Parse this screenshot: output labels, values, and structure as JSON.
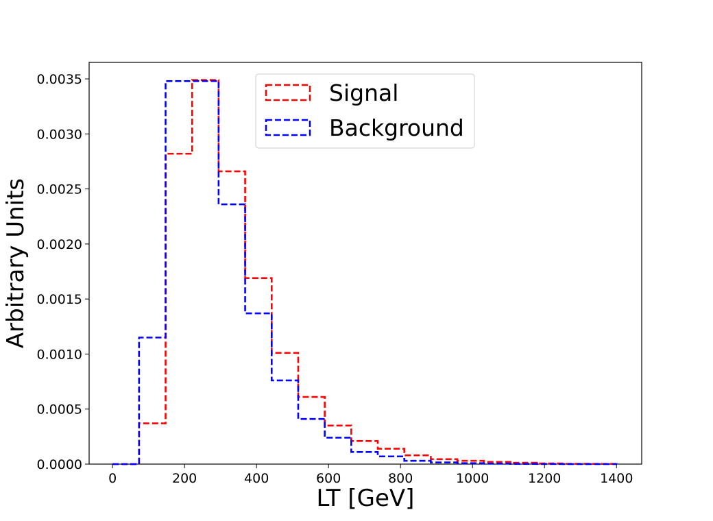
{
  "chart_data": {
    "type": "histogram",
    "title": "",
    "xlabel": "LT [GeV]",
    "ylabel": "Arbitrary Units",
    "xlim": [
      -65,
      1470
    ],
    "ylim": [
      0,
      0.00365
    ],
    "xticks": [
      0,
      200,
      400,
      600,
      800,
      1000,
      1200,
      1400
    ],
    "xtick_labels": [
      "0",
      "200",
      "400",
      "600",
      "800",
      "1000",
      "1200",
      "1400"
    ],
    "yticks": [
      0,
      0.0005,
      0.001,
      0.0015,
      0.002,
      0.0025,
      0.003,
      0.0035
    ],
    "ytick_labels": [
      "0.0000",
      "0.0005",
      "0.0010",
      "0.0015",
      "0.0020",
      "0.0025",
      "0.0030",
      "0.0035"
    ],
    "bin_edges": [
      0,
      73.7,
      147.4,
      221.1,
      294.7,
      368.4,
      442.1,
      515.8,
      589.5,
      663.2,
      736.8,
      810.5,
      884.2,
      957.9,
      1031.6,
      1105.3,
      1178.9,
      1252.6,
      1326.3,
      1400
    ],
    "series": [
      {
        "name": "Signal",
        "color": "#ff0000",
        "style": "dashed",
        "values": [
          0,
          0.00037,
          0.00282,
          0.00349,
          0.00266,
          0.00169,
          0.00101,
          0.00061,
          0.00035,
          0.00021,
          0.00014,
          8e-05,
          4.5e-05,
          3e-05,
          2e-05,
          1.2e-05,
          6e-06,
          3e-06,
          2e-06
        ]
      },
      {
        "name": "Background",
        "color": "#0000ff",
        "style": "dashed",
        "values": [
          0,
          0.00115,
          0.00348,
          0.00348,
          0.00236,
          0.00137,
          0.00076,
          0.00041,
          0.00024,
          0.00011,
          7e-05,
          3e-05,
          1.5e-05,
          8e-06,
          4e-06,
          2e-06,
          1e-06,
          5e-07,
          2e-07
        ]
      }
    ],
    "grid": false,
    "legend_position": "upper center"
  }
}
